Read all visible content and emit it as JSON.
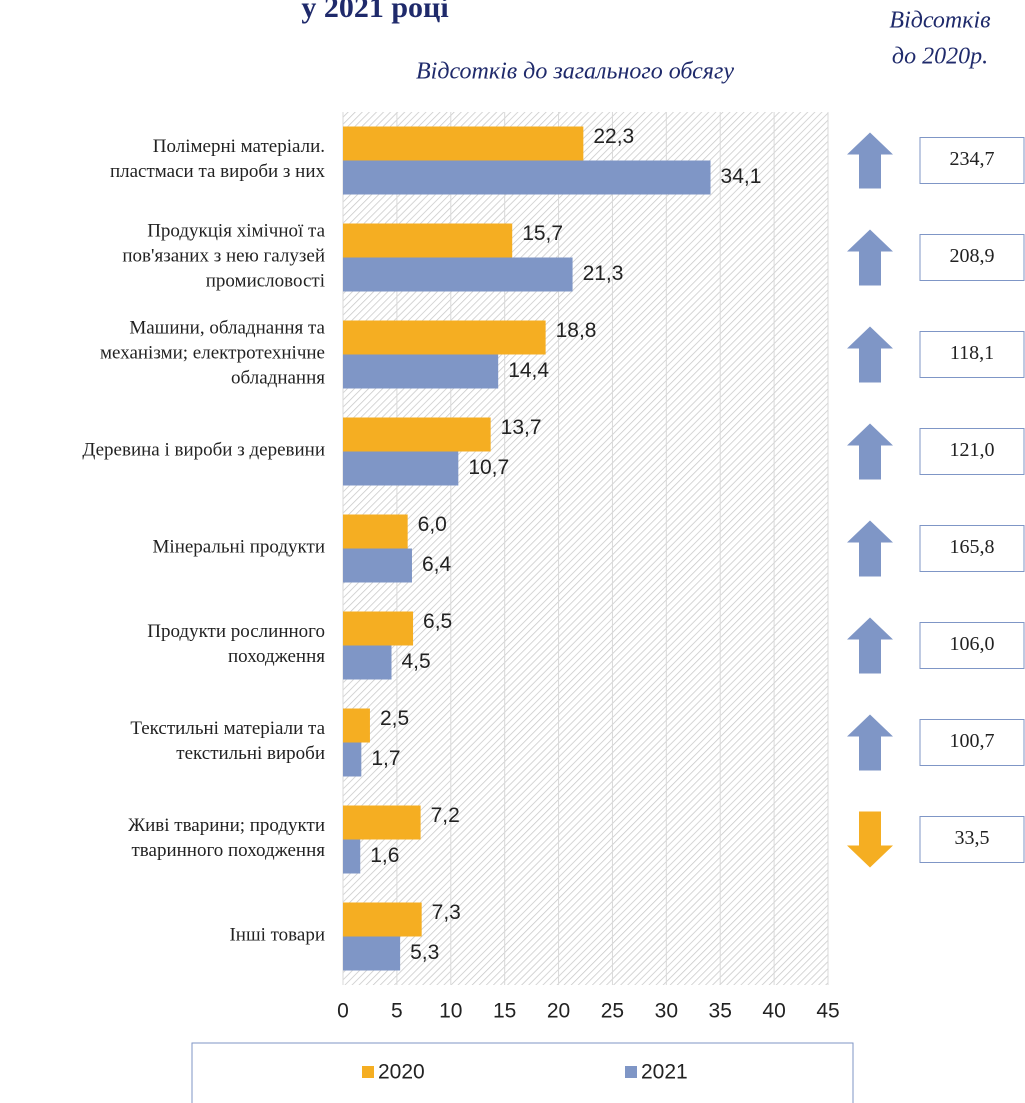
{
  "chart_data": {
    "type": "bar",
    "orientation": "horizontal",
    "title": "у 2021 році",
    "subtitle": "Відсотків до загального обсягу",
    "side_title": [
      "Відсотків",
      "до  2020р."
    ],
    "categories": [
      "Полімерні матеріали.\nпластмаси та вироби з них",
      "Продукція хімічної та\nпов'язаних з нею галузей\nпромисловості",
      "Машини, обладнання та\nмеханізми; електротехнічне\nобладнання",
      "Деревина і вироби з деревини",
      "Мінеральні продукти",
      "Продукти рослинного\nпоходження",
      "Текстильні матеріали та\nтекстильні вироби",
      "Живі тварини; продукти\nтваринного походження",
      "Інші товари"
    ],
    "series": [
      {
        "name": "2020",
        "color": "#f5ae22",
        "values": [
          22.3,
          15.7,
          18.8,
          13.7,
          6.0,
          6.5,
          2.5,
          7.2,
          7.3
        ],
        "value_labels": [
          "22,3",
          "15,7",
          "18,8",
          "13,7",
          "6,0",
          "6,5",
          "2,5",
          "7,2",
          "7,3"
        ]
      },
      {
        "name": "2021",
        "color": "#7f96c6",
        "values": [
          34.1,
          21.3,
          14.4,
          10.7,
          6.4,
          4.5,
          1.7,
          1.6,
          5.3
        ],
        "value_labels": [
          "34,1",
          "21,3",
          "14,4",
          "10,7",
          "6,4",
          "4,5",
          "1,7",
          "1,6",
          "5,3"
        ]
      }
    ],
    "change_to_2020": {
      "values": [
        234.7,
        208.9,
        118.1,
        121.0,
        165.8,
        106.0,
        100.7,
        33.5
      ],
      "value_labels": [
        "234,7",
        "208,9",
        "118,1",
        "121,0",
        "165,8",
        "106,0",
        "100,7",
        "33,5"
      ],
      "up_color": "#7f96c6",
      "down_color": "#f5ae22"
    },
    "xlim": [
      0,
      45
    ],
    "xticks": [
      0,
      5,
      10,
      15,
      20,
      25,
      30,
      35,
      40,
      45
    ],
    "grid": true,
    "legend": "bottom"
  }
}
